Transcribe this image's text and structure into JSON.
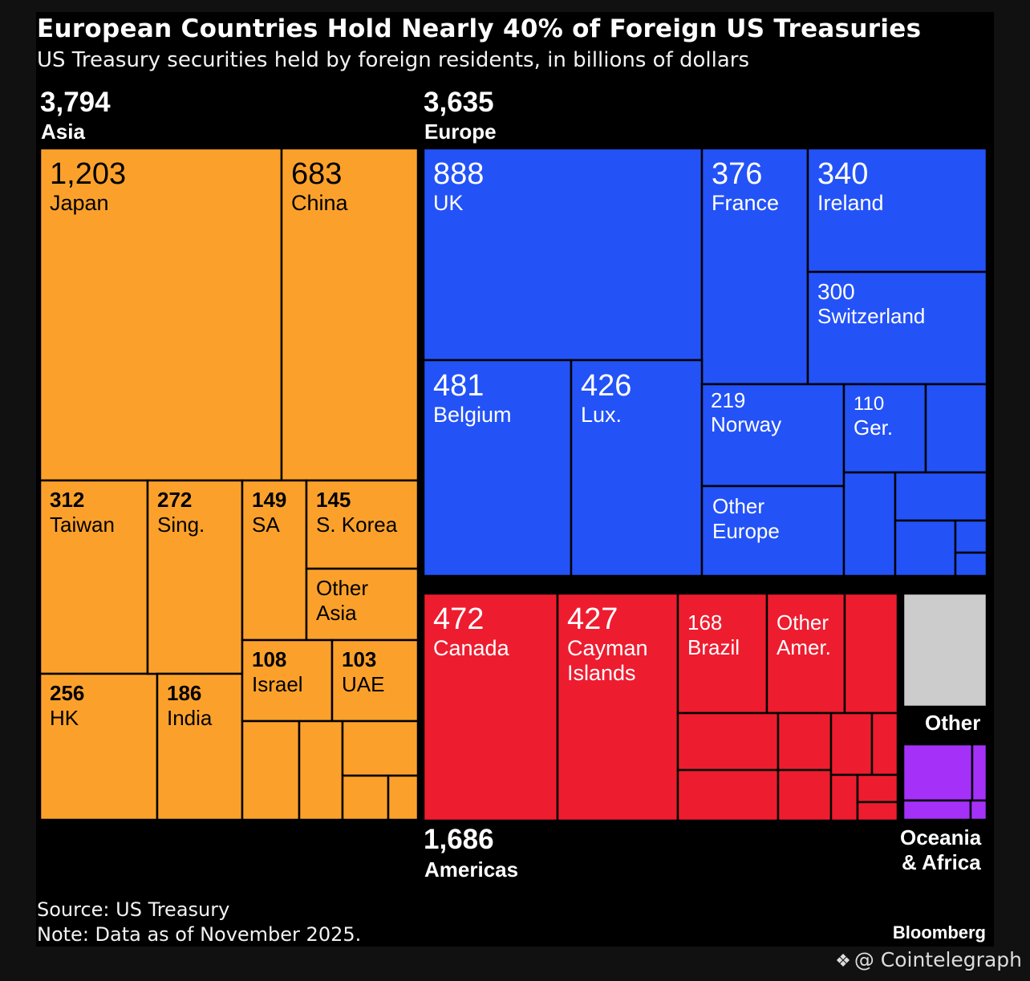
{
  "header": {
    "title": "European Countries Hold Nearly 40% of Foreign US Treasuries",
    "subtitle": "US Treasury securities held by foreign residents, in billions of dollars"
  },
  "regions": {
    "asia": {
      "total": "3,794",
      "name": "Asia"
    },
    "europe": {
      "total": "3,635",
      "name": "Europe"
    },
    "americas": {
      "total": "1,686",
      "name": "Americas"
    },
    "other": {
      "name": "Other"
    },
    "oceania_africa": {
      "name_line1": "Oceania",
      "name_line2": "& Africa"
    }
  },
  "footer": {
    "source": "Source: US Treasury",
    "note": "Note: Data as of November 2025.",
    "brand": "Bloomberg",
    "watermark": "@ Cointelegraph"
  },
  "colors": {
    "asia": "#FBA12B",
    "europe": "#2352F7",
    "americas": "#EE1C2F",
    "other": "#CCCCCC",
    "oceania_africa": "#A531F9",
    "background": "#000000"
  },
  "chart_data": {
    "type": "treemap",
    "title": "European Countries Hold Nearly 40% of Foreign US Treasuries",
    "subtitle": "US Treasury securities held by foreign residents, in billions of dollars",
    "units": "billions of dollars",
    "groups": [
      {
        "name": "Asia",
        "total": 3794,
        "items": [
          {
            "label": "Japan",
            "value": 1203
          },
          {
            "label": "China",
            "value": 683
          },
          {
            "label": "Taiwan",
            "value": 312
          },
          {
            "label": "HK",
            "value": 256
          },
          {
            "label": "Sing.",
            "value": 272
          },
          {
            "label": "India",
            "value": 186
          },
          {
            "label": "SA",
            "value": 149
          },
          {
            "label": "S. Korea",
            "value": 145
          },
          {
            "label": "Other Asia"
          },
          {
            "label": "Israel",
            "value": 108
          },
          {
            "label": "UAE",
            "value": 103
          }
        ]
      },
      {
        "name": "Europe",
        "total": 3635,
        "items": [
          {
            "label": "UK",
            "value": 888
          },
          {
            "label": "France",
            "value": 376
          },
          {
            "label": "Ireland",
            "value": 340
          },
          {
            "label": "Switzerland",
            "value": 300
          },
          {
            "label": "Belgium",
            "value": 481
          },
          {
            "label": "Lux.",
            "value": 426
          },
          {
            "label": "Norway",
            "value": 219
          },
          {
            "label": "Ger.",
            "value": 110
          },
          {
            "label": "Other Europe"
          }
        ]
      },
      {
        "name": "Americas",
        "total": 1686,
        "items": [
          {
            "label": "Canada",
            "value": 472
          },
          {
            "label": "Cayman Islands",
            "value": 427
          },
          {
            "label": "Brazil",
            "value": 168
          },
          {
            "label": "Other Amer."
          }
        ]
      },
      {
        "name": "Other",
        "items": []
      },
      {
        "name": "Oceania & Africa",
        "items": []
      }
    ]
  }
}
